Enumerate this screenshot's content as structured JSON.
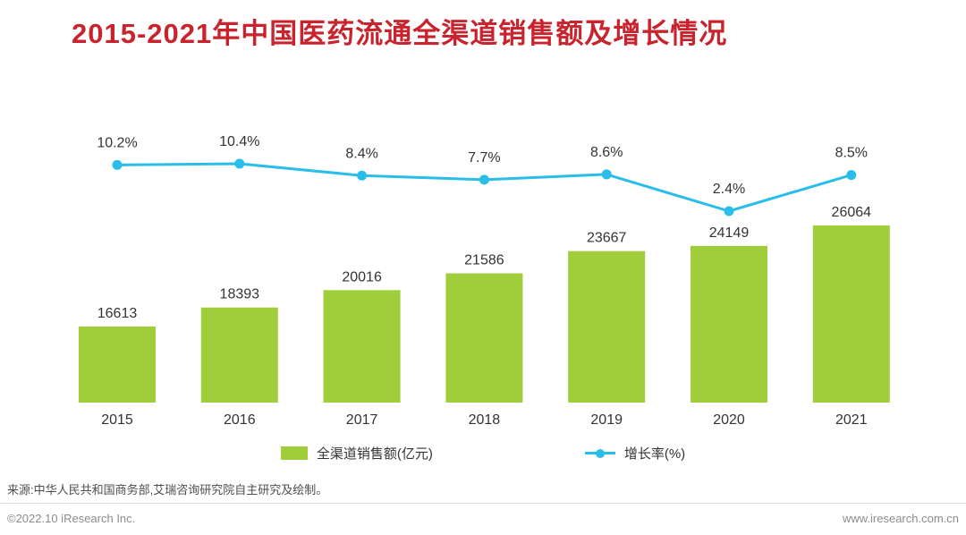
{
  "page": {
    "title": "2015-2021年中国医药流通全渠道销售额及增长情况",
    "source_note": "来源:中华人民共和国商务部,艾瑞咨询研究院自主研究及绘制。",
    "footer_left": "©2022.10 iResearch Inc.",
    "footer_right": "www.iresearch.com.cn"
  },
  "colors": {
    "title_red": "#c9232d",
    "bar_green": "#a0cd3a",
    "line_cyan": "#29bde9",
    "label_dark": "#333333",
    "source_gray": "#4d4d4d",
    "footer_gray": "#8c8c8c",
    "divider_gray": "#dcdcdc"
  },
  "chart_data": {
    "type": "bar",
    "subtype": "bar-with-line-overlay",
    "title": "2015-2021年中国医药流通全渠道销售额及增长情况",
    "categories": [
      "2015",
      "2016",
      "2017",
      "2018",
      "2019",
      "2020",
      "2021"
    ],
    "series": [
      {
        "name": "全渠道销售额(亿元)",
        "type": "bar",
        "values": [
          16613,
          18393,
          20016,
          21586,
          23667,
          24149,
          26064
        ],
        "color": "#a0cd3a"
      },
      {
        "name": "增长率(%)",
        "type": "line",
        "values": [
          10.2,
          10.4,
          8.4,
          7.7,
          8.6,
          2.4,
          8.5
        ],
        "labels": [
          "10.2%",
          "10.4%",
          "8.4%",
          "7.7%",
          "8.6%",
          "2.4%",
          "8.5%"
        ],
        "color": "#29bde9"
      }
    ],
    "xlabel": "",
    "ylabel": "",
    "legend": [
      "全渠道销售额(亿元)",
      "增长率(%)"
    ],
    "legend_position": "bottom",
    "grid": false,
    "data_labels_visible": true,
    "bar_baseline_value_hint": 9500
  }
}
